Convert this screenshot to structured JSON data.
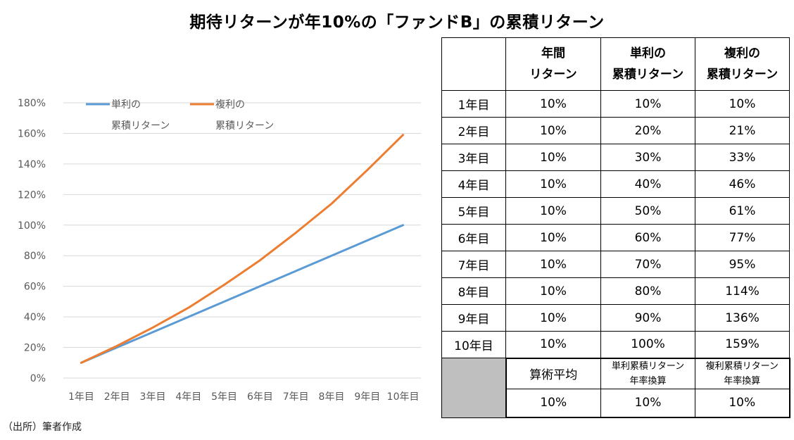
{
  "title": "期待リターンが年10%の「ファンドB」の累積リターン",
  "source": "（出所）筆者作成",
  "colors": {
    "simple": "#5b9bd5",
    "compound": "#ed7d31",
    "grid": "#d9d9d9",
    "summary_fill": "#bfbfbf"
  },
  "chart_data": {
    "type": "line",
    "categories": [
      "1年目",
      "2年目",
      "3年目",
      "4年目",
      "5年目",
      "6年目",
      "7年目",
      "8年目",
      "9年目",
      "10年目"
    ],
    "series": [
      {
        "name_lines": [
          "単利の",
          "累積リターン"
        ],
        "values": [
          10,
          20,
          30,
          40,
          50,
          60,
          70,
          80,
          90,
          100
        ]
      },
      {
        "name_lines": [
          "複利の",
          "累積リターン"
        ],
        "values": [
          10,
          21,
          33,
          46,
          61,
          77,
          95,
          114,
          136,
          159
        ]
      }
    ],
    "y_ticks": [
      "0%",
      "20%",
      "40%",
      "60%",
      "80%",
      "100%",
      "120%",
      "140%",
      "160%",
      "180%"
    ],
    "ylim": [
      0,
      180
    ],
    "grid": true,
    "legend": "top-left"
  },
  "table": {
    "headers": [
      [],
      [
        "年間",
        "リターン"
      ],
      [
        "単利の",
        "累積リターン"
      ],
      [
        "複利の",
        "累積リターン"
      ]
    ],
    "rows": [
      [
        "1年目",
        "10%",
        "10%",
        "10%"
      ],
      [
        "2年目",
        "10%",
        "20%",
        "21%"
      ],
      [
        "3年目",
        "10%",
        "30%",
        "33%"
      ],
      [
        "4年目",
        "10%",
        "40%",
        "46%"
      ],
      [
        "5年目",
        "10%",
        "50%",
        "61%"
      ],
      [
        "6年目",
        "10%",
        "60%",
        "77%"
      ],
      [
        "7年目",
        "10%",
        "70%",
        "95%"
      ],
      [
        "8年目",
        "10%",
        "80%",
        "114%"
      ],
      [
        "9年目",
        "10%",
        "90%",
        "136%"
      ],
      [
        "10年目",
        "10%",
        "100%",
        "159%"
      ]
    ],
    "summary_labels": [
      "算術平均",
      [
        "単利累積リターン",
        "年率換算"
      ],
      [
        "複利累積リターン",
        "年率換算"
      ]
    ],
    "summary_values": [
      "10%",
      "10%",
      "10%"
    ]
  }
}
